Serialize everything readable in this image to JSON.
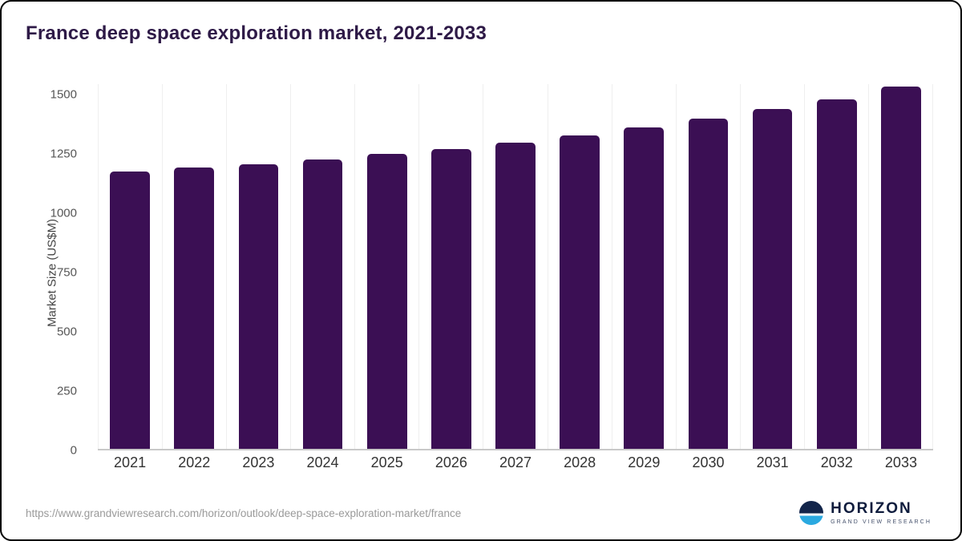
{
  "header": {
    "title": "France deep space exploration market, 2021-2033"
  },
  "chart_data": {
    "type": "bar",
    "title": "France deep space exploration market, 2021-2033",
    "categories": [
      "2021",
      "2022",
      "2023",
      "2024",
      "2025",
      "2026",
      "2027",
      "2028",
      "2029",
      "2030",
      "2031",
      "2032",
      "2033"
    ],
    "values": [
      1170,
      1185,
      1200,
      1220,
      1243,
      1265,
      1293,
      1322,
      1355,
      1393,
      1432,
      1475,
      1528
    ],
    "xlabel": "",
    "ylabel": "Market Size (US$M)",
    "ylim": [
      0,
      1500
    ],
    "yticks": [
      0,
      250,
      500,
      750,
      1000,
      1250,
      1500
    ],
    "bar_color": "#3b0f54",
    "grid": "vertical",
    "legend": "none"
  },
  "footer": {
    "source_url": "https://www.grandviewresearch.com/horizon/outlook/deep-space-exploration-market/france",
    "logo_name": "HORIZON",
    "logo_subtitle": "GRAND VIEW RESEARCH"
  }
}
